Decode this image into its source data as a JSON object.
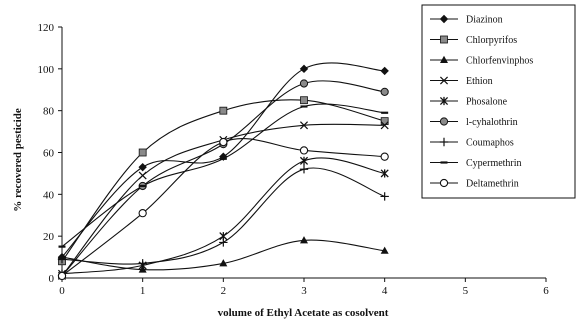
{
  "chart_data": {
    "type": "line",
    "title": "",
    "xlabel": "volume of Ethyl Acetate as cosolvent",
    "ylabel": "% recovered pesticide",
    "xlim": [
      0,
      6
    ],
    "ylim": [
      0,
      120
    ],
    "xticks": [
      "0",
      "1",
      "2",
      "3",
      "4",
      "5",
      "6"
    ],
    "yticks": [
      "0",
      "20",
      "40",
      "60",
      "80",
      "100",
      "120"
    ],
    "grid": false,
    "legend_position": "right",
    "x": [
      0,
      1,
      2,
      3,
      4
    ],
    "series": [
      {
        "name": "Diazinon",
        "marker": "diamond",
        "values": [
          10,
          53,
          58,
          100,
          99
        ]
      },
      {
        "name": "Chlorpyrifos",
        "marker": "square",
        "values": [
          8,
          60,
          80,
          85,
          75
        ]
      },
      {
        "name": "Chlorfenvinphos",
        "marker": "triangle",
        "values": [
          10,
          4,
          7,
          18,
          13
        ]
      },
      {
        "name": "Ethion",
        "marker": "x",
        "values": [
          1,
          49,
          66,
          73,
          73
        ]
      },
      {
        "name": "Phosalone",
        "marker": "star",
        "values": [
          2,
          6,
          20,
          56,
          50
        ]
      },
      {
        "name": "l-cyhalothrin",
        "marker": "circle-filled",
        "values": [
          1,
          44,
          64,
          93,
          89
        ]
      },
      {
        "name": "Coumaphos",
        "marker": "plus",
        "values": [
          9,
          7,
          17,
          52,
          39
        ]
      },
      {
        "name": "Cypermethrin",
        "marker": "dash",
        "values": [
          15,
          44,
          57,
          82,
          79
        ]
      },
      {
        "name": "Deltamethrin",
        "marker": "circle-open",
        "values": [
          1,
          31,
          65,
          61,
          58
        ]
      }
    ]
  }
}
